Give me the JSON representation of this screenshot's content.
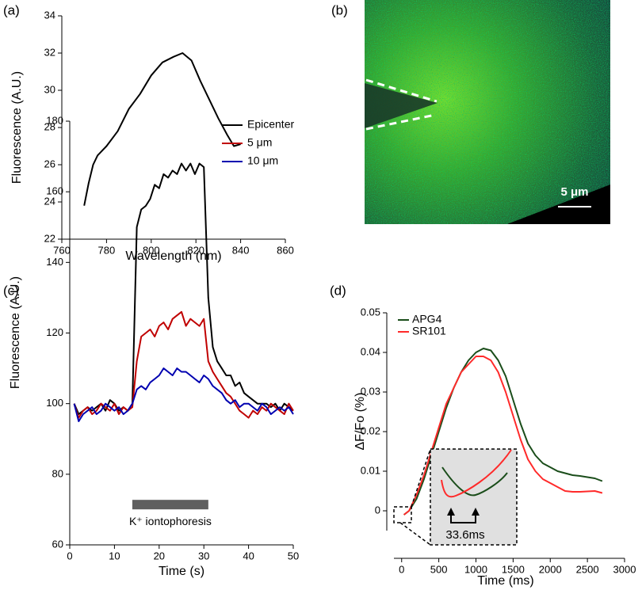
{
  "chart_data": [
    {
      "type": "line",
      "panel_label": "(a)",
      "x_label": "Wavelength (nm)",
      "y_label": "Fluorescence (A.U.)",
      "x": [
        770,
        772,
        774,
        776,
        780,
        785,
        790,
        795,
        800,
        805,
        810,
        814,
        818,
        822,
        826,
        830,
        834,
        837,
        840
      ],
      "values": [
        23.8,
        25,
        26,
        26.5,
        27,
        27.8,
        29,
        29.8,
        30.8,
        31.5,
        31.8,
        32,
        31.6,
        30.5,
        29.5,
        28.5,
        27.6,
        27,
        27.1
      ],
      "color": "#000000",
      "xlim": [
        760,
        860
      ],
      "xticks": [
        760,
        780,
        800,
        820,
        840,
        860
      ],
      "ylim": [
        22,
        34
      ],
      "yticks": [
        22,
        24,
        26,
        28,
        30,
        32,
        34
      ]
    },
    {
      "type": "image",
      "panel_label": "(b)",
      "scale_bar_label": "5 μm"
    },
    {
      "type": "line",
      "panel_label": "(c)",
      "x_label": "Time (s)",
      "y_label": "Fluorescence (A.U.)",
      "x": [
        1,
        2,
        3,
        4,
        5,
        6,
        7,
        8,
        9,
        10,
        11,
        12,
        13,
        14,
        15,
        16,
        17,
        18,
        19,
        20,
        21,
        22,
        23,
        24,
        25,
        26,
        27,
        28,
        29,
        30,
        31,
        32,
        33,
        34,
        35,
        36,
        37,
        38,
        39,
        40,
        41,
        42,
        43,
        44,
        45,
        46,
        47,
        48,
        49,
        50
      ],
      "series": [
        {
          "name": "Epicenter",
          "color": "#000000",
          "values": [
            100,
            97,
            98,
            99,
            98,
            99,
            100,
            98,
            101,
            100,
            98,
            99,
            98,
            100,
            150,
            155,
            156,
            158,
            162,
            161,
            165,
            164,
            166,
            165,
            168,
            166,
            168,
            165,
            168,
            167,
            130,
            116,
            112,
            110,
            108,
            108,
            105,
            106,
            103,
            102,
            101,
            100,
            100,
            100,
            99,
            100,
            98,
            100,
            99,
            98
          ]
        },
        {
          "name": "5 μm",
          "color": "#c00000",
          "values": [
            100,
            96,
            98,
            99,
            97,
            98,
            100,
            99,
            98,
            100,
            97,
            99,
            98,
            99,
            112,
            119,
            120,
            121,
            119,
            122,
            123,
            121,
            124,
            125,
            126,
            122,
            124,
            123,
            122,
            124,
            112,
            109,
            107,
            105,
            103,
            102,
            100,
            98,
            97,
            96,
            98,
            97,
            99,
            98,
            100,
            99,
            98,
            97,
            100,
            98
          ]
        },
        {
          "name": "10 μm",
          "color": "#0000b0",
          "values": [
            100,
            95,
            97,
            98,
            99,
            97,
            98,
            100,
            99,
            98,
            99,
            97,
            98,
            100,
            104,
            105,
            104,
            106,
            107,
            108,
            110,
            109,
            108,
            110,
            109,
            109,
            108,
            107,
            106,
            108,
            107,
            105,
            104,
            103,
            101,
            100,
            101,
            99,
            100,
            100,
            99,
            98,
            100,
            99,
            97,
            98,
            99,
            98,
            99,
            97
          ]
        }
      ],
      "xlim": [
        0,
        50
      ],
      "xticks": [
        0,
        10,
        20,
        30,
        40,
        50
      ],
      "ylim": [
        60,
        180
      ],
      "yticks": [
        60,
        80,
        100,
        120,
        140,
        160,
        180
      ],
      "legend": "upper right",
      "stimulus": {
        "label": "K⁺ iontophoresis",
        "start": 14,
        "end": 31
      }
    },
    {
      "type": "line",
      "panel_label": "(d)",
      "x_label": "Time (ms)",
      "y_label": "ΔF/Fo (%)",
      "x": [
        30,
        100,
        200,
        300,
        400,
        500,
        600,
        700,
        800,
        900,
        1000,
        1100,
        1200,
        1300,
        1400,
        1500,
        1600,
        1700,
        1800,
        1900,
        2000,
        2100,
        2200,
        2300,
        2400,
        2500,
        2600,
        2700
      ],
      "series": [
        {
          "name": "APG4",
          "color": "#1a4d1a",
          "values": [
            -0.001,
            0,
            0.003,
            0.008,
            0.014,
            0.02,
            0.026,
            0.031,
            0.035,
            0.038,
            0.04,
            0.041,
            0.0405,
            0.038,
            0.034,
            0.028,
            0.022,
            0.017,
            0.014,
            0.012,
            0.011,
            0.01,
            0.0095,
            0.009,
            0.0088,
            0.0085,
            0.0082,
            0.0075
          ]
        },
        {
          "name": "SR101",
          "color": "#ff2a2a",
          "values": [
            -0.001,
            0,
            0.004,
            0.009,
            0.015,
            0.021,
            0.027,
            0.031,
            0.035,
            0.037,
            0.039,
            0.039,
            0.038,
            0.035,
            0.03,
            0.024,
            0.018,
            0.013,
            0.01,
            0.008,
            0.007,
            0.006,
            0.005,
            0.0048,
            0.0048,
            0.0049,
            0.005,
            0.0045
          ]
        }
      ],
      "xlim": [
        -200,
        3000
      ],
      "xticks": [
        0,
        500,
        1000,
        1500,
        2000,
        2500,
        3000
      ],
      "ylim": [
        -0.005,
        0.05
      ],
      "yticks": [
        0,
        0.01,
        0.02,
        0.03,
        0.04,
        0.05
      ],
      "legend": "upper left",
      "inset_label": "33.6ms"
    }
  ]
}
